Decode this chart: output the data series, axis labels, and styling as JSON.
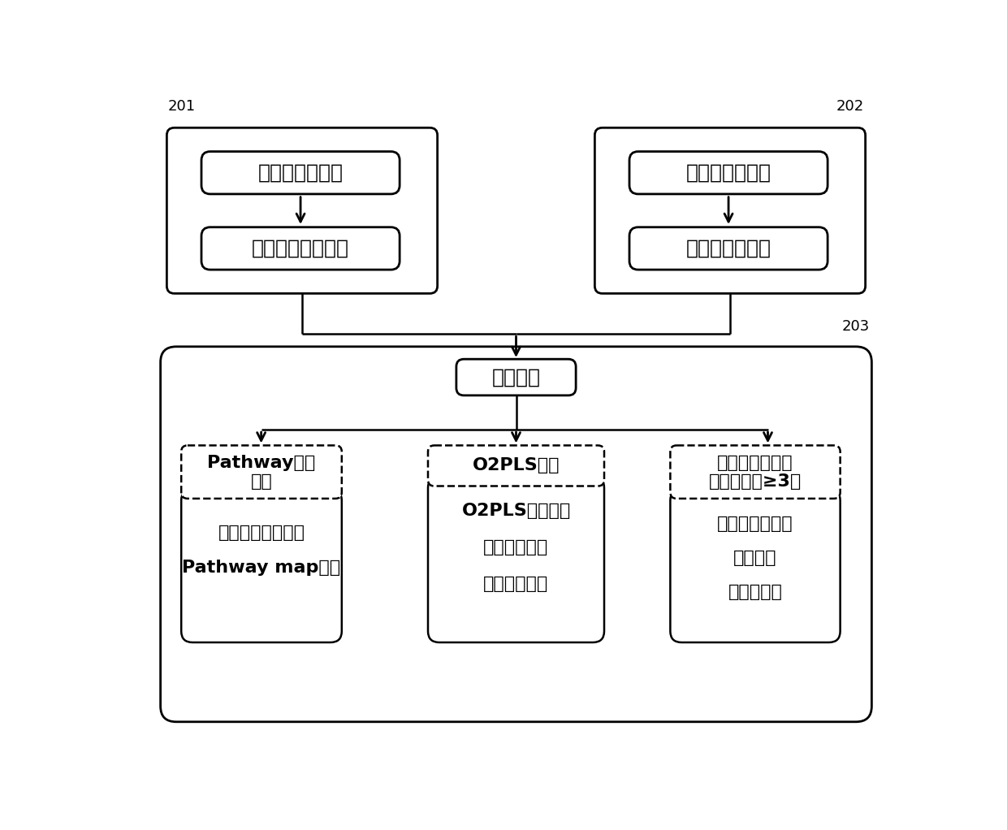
{
  "bg_color": "#ffffff",
  "line_color": "#000000",
  "text_color": "#000000",
  "font_size_large": 18,
  "font_size_main": 16,
  "font_size_label": 13,
  "label_201": "201",
  "label_202": "202",
  "label_203": "203",
  "box201_title1": "转录组数据分析",
  "box201_title2": "差异表达基因分析",
  "box202_title1": "代谢组数据分析",
  "box202_title2": "差异代谢物分析",
  "box_guanlian": "关联分析",
  "box_pathway_title": "Pathway功能\n模型",
  "box_pathway_content1": "共有代谢通路分析",
  "box_pathway_content2": "Pathway map展示",
  "box_o2pls_title": "O2PLS模型",
  "box_o2pls_content1": "O2PLS模型构建",
  "box_o2pls_content2": "模型交叉验证",
  "box_o2pls_content3": "模型结果展示",
  "box_corr_title": "相关性系数模型\n（样本分组≥3）",
  "box_corr_content1": "相关性系数计算",
  "box_corr_content2": "热图展示",
  "box_corr_content3": "网络图展示"
}
